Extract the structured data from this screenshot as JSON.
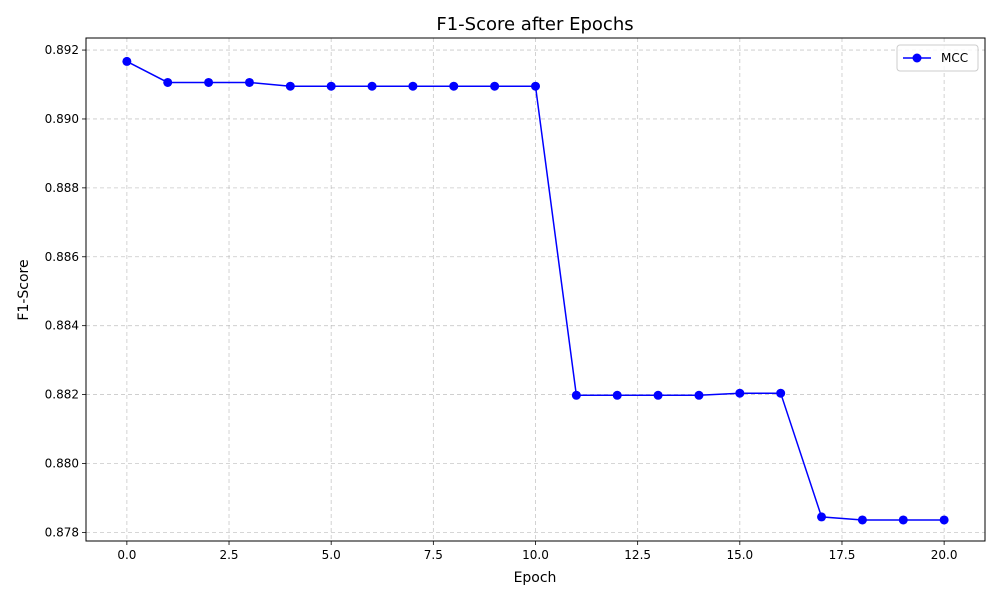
{
  "chart_data": {
    "type": "line",
    "title": "F1-Score after Epochs",
    "xlabel": "Epoch",
    "ylabel": "F1-Score",
    "xlim": [
      -1.0,
      21.0
    ],
    "ylim": [
      0.87775,
      0.89235
    ],
    "xticks": [
      0.0,
      2.5,
      5.0,
      7.5,
      10.0,
      12.5,
      15.0,
      17.5,
      20.0
    ],
    "xtick_labels": [
      "0.0",
      "2.5",
      "5.0",
      "7.5",
      "10.0",
      "12.5",
      "15.0",
      "17.5",
      "20.0"
    ],
    "yticks": [
      0.878,
      0.88,
      0.882,
      0.884,
      0.886,
      0.888,
      0.89,
      0.892
    ],
    "ytick_labels": [
      "0.878",
      "0.880",
      "0.882",
      "0.884",
      "0.886",
      "0.888",
      "0.890",
      "0.892"
    ],
    "grid": true,
    "grid_style": "dashed",
    "legend_position": "top-right",
    "series": [
      {
        "name": "MCC",
        "color": "#0000ff",
        "marker": "circle",
        "x": [
          0,
          1,
          2,
          3,
          4,
          5,
          6,
          7,
          8,
          9,
          10,
          11,
          12,
          13,
          14,
          15,
          16,
          17,
          18,
          19,
          20
        ],
        "y": [
          0.89167,
          0.89106,
          0.89106,
          0.89106,
          0.89095,
          0.89095,
          0.89095,
          0.89095,
          0.89095,
          0.89095,
          0.89095,
          0.88198,
          0.88198,
          0.88198,
          0.88198,
          0.88204,
          0.88204,
          0.87845,
          0.87836,
          0.87836,
          0.87836
        ]
      }
    ]
  }
}
